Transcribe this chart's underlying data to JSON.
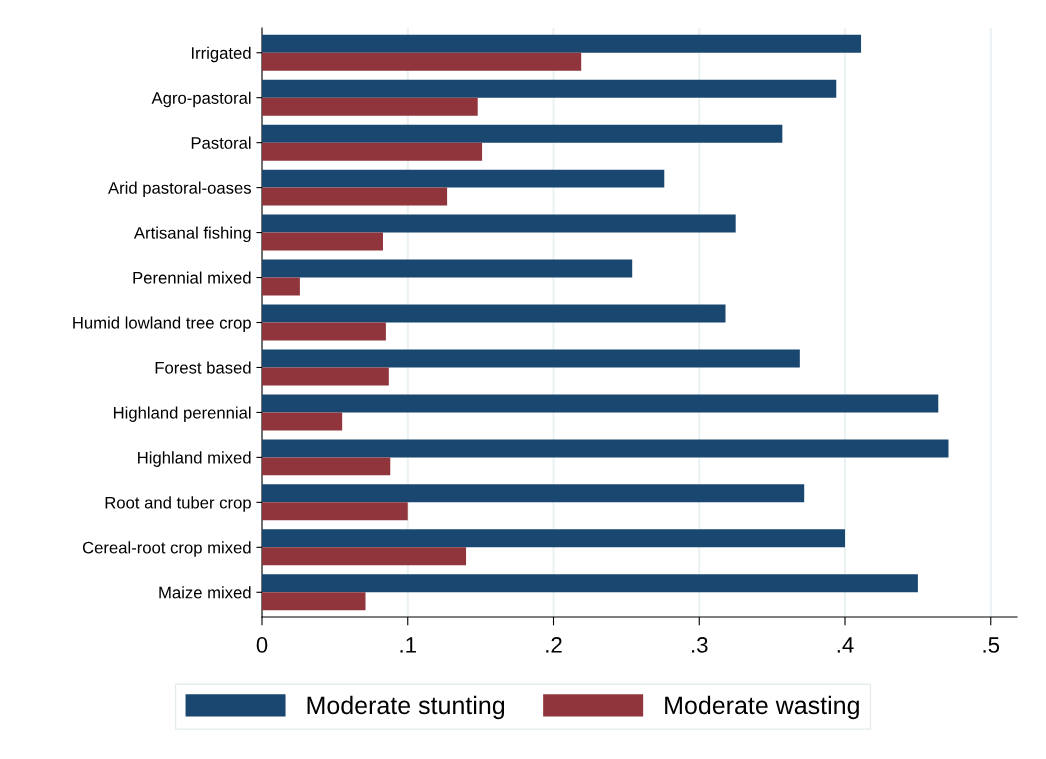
{
  "chart_data": {
    "type": "bar",
    "orientation": "horizontal",
    "categories": [
      "Irrigated",
      "Agro-pastoral",
      "Pastoral",
      "Arid pastoral-oases",
      "Artisanal fishing",
      "Perennial mixed",
      "Humid lowland tree crop",
      "Forest based",
      "Highland perennial",
      "Highland mixed",
      "Root and tuber crop",
      "Cereal-root crop mixed",
      "Maize mixed"
    ],
    "series": [
      {
        "name": "Moderate stunting",
        "color": "#1a476f",
        "values": [
          0.411,
          0.394,
          0.357,
          0.276,
          0.325,
          0.254,
          0.318,
          0.369,
          0.464,
          0.471,
          0.372,
          0.4,
          0.45
        ]
      },
      {
        "name": "Moderate wasting",
        "color": "#90353b",
        "values": [
          0.219,
          0.148,
          0.151,
          0.127,
          0.083,
          0.026,
          0.085,
          0.087,
          0.055,
          0.088,
          0.1,
          0.14,
          0.071
        ]
      }
    ],
    "xlim": [
      0,
      0.518
    ],
    "xticks": [
      0,
      {
        "value": 0.1,
        "label": ".1"
      },
      {
        "value": 0.2,
        "label": ".2"
      },
      {
        "value": 0.3,
        "label": ".3"
      },
      {
        "value": 0.4,
        "label": ".4"
      },
      {
        "value": 0.5,
        "label": ".5"
      }
    ],
    "grid": "x",
    "legend": "bottom"
  }
}
